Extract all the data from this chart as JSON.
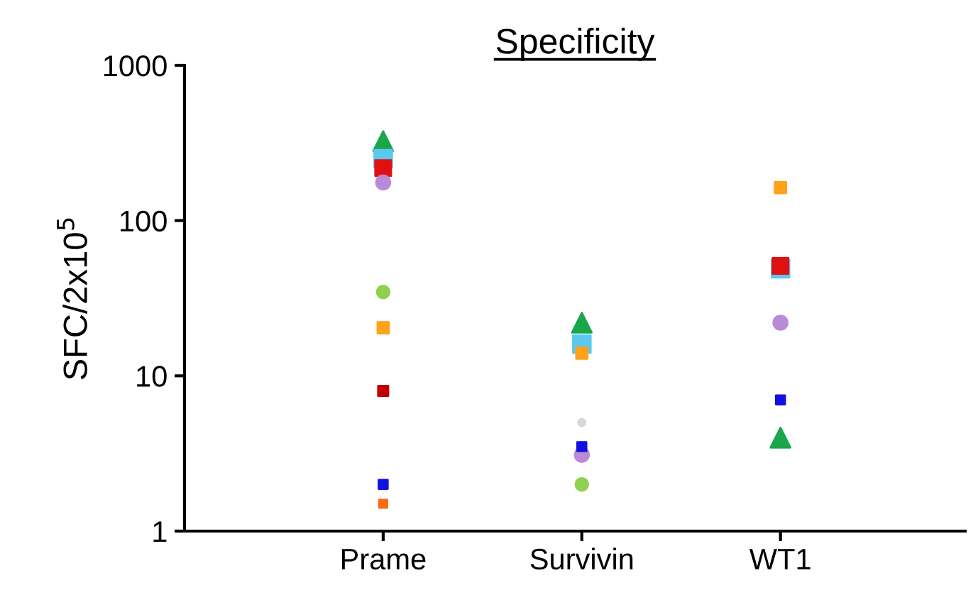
{
  "chart_data": {
    "type": "scatter",
    "title": "Specificity",
    "ylabel": "SFC/2x10$^{5}$",
    "categories": [
      "Prame",
      "Survivin",
      "WT1"
    ],
    "log": true,
    "ylim": [
      1,
      1000
    ],
    "yticks": [
      1,
      10,
      100,
      1000
    ],
    "grid": false,
    "legend": false,
    "series": [
      {
        "color": "#1aa64a",
        "marker": "triangle",
        "values": [
          325,
          22,
          4
        ]
      },
      {
        "color": "#5bc8f0",
        "marker": "square",
        "values": [
          250,
          16,
          49
        ]
      },
      {
        "color": "#e01010",
        "marker": "square",
        "values": [
          218,
          null,
          51
        ]
      },
      {
        "color": "#b98ad8",
        "marker": "circle",
        "values": [
          176,
          3.1,
          22
        ]
      },
      {
        "color": "#8fd14f",
        "marker": "circle",
        "values": [
          34.7,
          2,
          null
        ]
      },
      {
        "color": "#ffa21a",
        "marker": "square",
        "values": [
          20.4,
          14,
          163
        ]
      },
      {
        "color": "#c00000",
        "marker": "square",
        "values": [
          8,
          null,
          null
        ]
      },
      {
        "color": "#1010e0",
        "marker": "square",
        "values": [
          2,
          3.5,
          7
        ]
      },
      {
        "color": "#ff6a10",
        "marker": "square",
        "values": [
          1.5,
          null,
          null
        ]
      },
      {
        "color": "#d8d8d8",
        "marker": "circle",
        "values": [
          null,
          5,
          null
        ]
      }
    ]
  }
}
